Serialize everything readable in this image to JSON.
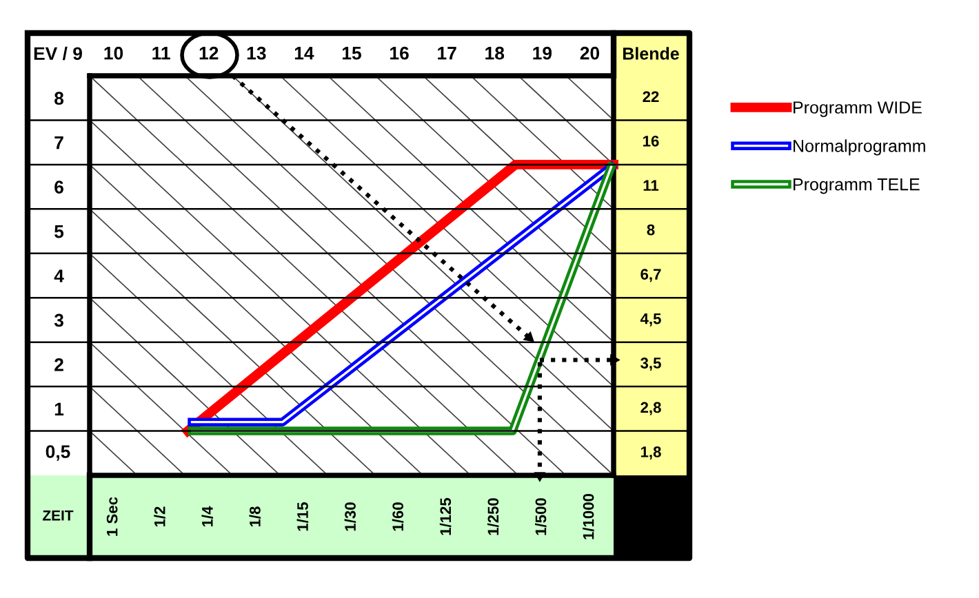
{
  "chart_data": {
    "type": "line",
    "xlabel": "ZEIT",
    "ylabel": "EV / 9",
    "y2label": "Blende",
    "legend": "right",
    "xlim": [
      9.5,
      20.5
    ],
    "xticks": [
      10,
      11,
      12,
      13,
      14,
      15,
      16,
      17,
      18,
      19,
      20
    ],
    "annotations": [
      "1 Sec",
      "1/2",
      "1/4",
      "1/8",
      "1/15",
      "1/30",
      "1/60",
      "1/125",
      "1/250",
      "1/500",
      "1/1000",
      "1,8",
      "2,8",
      "3,5",
      "4,5",
      "6,7",
      "8",
      "11",
      "16",
      "22",
      "0,5"
    ],
    "ylim": [
      -0.5,
      8.5
    ],
    "yticks": [
      1,
      2,
      3,
      4,
      5,
      6,
      7,
      8
    ],
    "series": [
      {
        "color": "#404040",
        "x": [
          9.5,
          10.5
        ],
        "values": [
          0.5,
          -0.5
        ]
      },
      {
        "color": "#404040",
        "x": [
          9.5,
          11.5
        ],
        "values": [
          1.5,
          -0.5
        ]
      },
      {
        "color": "#404040",
        "x": [
          9.5,
          12.5
        ],
        "values": [
          2.5,
          -0.5
        ]
      },
      {
        "color": "#404040",
        "x": [
          9.5,
          13.5
        ],
        "values": [
          3.5,
          -0.5
        ]
      },
      {
        "color": "#404040",
        "x": [
          9.5,
          14.5
        ],
        "values": [
          4.5,
          -0.5
        ]
      },
      {
        "color": "#404040",
        "x": [
          9.5,
          15.5
        ],
        "values": [
          5.5,
          -0.5
        ]
      },
      {
        "color": "#404040",
        "x": [
          9.5,
          16.5
        ],
        "values": [
          6.5,
          -0.5
        ]
      },
      {
        "color": "#404040",
        "x": [
          9.5,
          17.5
        ],
        "values": [
          7.5,
          -0.5
        ]
      },
      {
        "color": "#404040",
        "x": [
          9.5,
          18.5
        ],
        "values": [
          8.5,
          -0.5
        ]
      },
      {
        "color": "#404040",
        "x": [
          10.5,
          19.5
        ],
        "values": [
          8.5,
          -0.5
        ]
      },
      {
        "color": "#404040",
        "x": [
          11.5,
          20.5
        ],
        "values": [
          8.5,
          -0.5
        ]
      },
      {
        "color": "#404040",
        "x": [
          12.5,
          20.5
        ],
        "values": [
          8.5,
          0.5
        ]
      },
      {
        "color": "#404040",
        "x": [
          13.5,
          20.5
        ],
        "values": [
          8.5,
          1.5
        ]
      },
      {
        "color": "#404040",
        "x": [
          14.5,
          20.5
        ],
        "values": [
          8.5,
          2.5
        ]
      },
      {
        "color": "#404040",
        "x": [
          15.5,
          20.5
        ],
        "values": [
          8.5,
          3.5
        ]
      },
      {
        "color": "#404040",
        "x": [
          16.5,
          20.5
        ],
        "values": [
          8.5,
          4.5
        ]
      },
      {
        "color": "#404040",
        "x": [
          17.5,
          20.5
        ],
        "values": [
          8.5,
          5.5
        ]
      },
      {
        "color": "#404040",
        "x": [
          18.5,
          20.5
        ],
        "values": [
          8.5,
          6.5
        ]
      },
      {
        "color": "#404040",
        "x": [
          19.5,
          20.5
        ],
        "values": [
          8.5,
          7.5
        ]
      },
      {
        "name": "Programm WIDE",
        "color": "#ff0000",
        "x": [
          11.56,
          18.44,
          20.5
        ],
        "values": [
          0.5,
          6.5,
          6.5
        ]
      },
      {
        "name": "Normalprogramm",
        "color": "#0000ff",
        "x": [
          11.65,
          13.55,
          20.45
        ],
        "values": [
          0.7,
          0.7,
          6.45
        ]
      },
      {
        "name": "Programm TELE",
        "color": "#108a10",
        "x": [
          11.65,
          18.38,
          20.45
        ],
        "values": [
          0.5,
          0.5,
          6.45
        ]
      },
      {
        "color": "#000000",
        "line_style": "dotted",
        "x": [
          12.5,
          18.73
        ],
        "values": [
          8.5,
          2.6
        ]
      },
      {
        "color": "#000000",
        "line_style": "dotted",
        "x": [
          18.95,
          20.5
        ],
        "values": [
          2.1,
          2.1
        ]
      },
      {
        "color": "#000000",
        "line_style": "dotted",
        "x": [
          18.95,
          18.95
        ],
        "values": [
          2.05,
          -0.5
        ]
      }
    ]
  }
}
